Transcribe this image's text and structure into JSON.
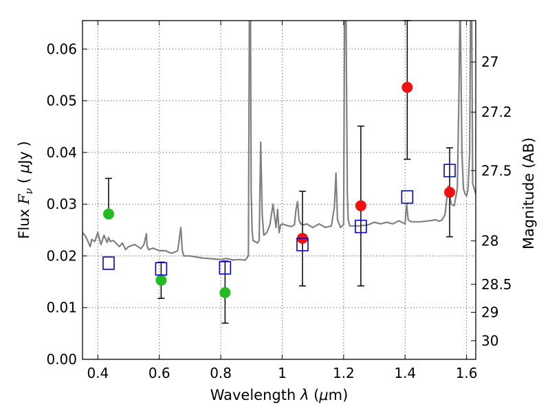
{
  "chart_data": {
    "type": "scatter",
    "title": "",
    "xlabel": {
      "prefix": "Wavelength  ",
      "lambda": "λ",
      "unit_open": " (",
      "mu": "μ",
      "unit_close": "m)"
    },
    "ylabel": {
      "prefix": "Flux  ",
      "F": "F",
      "nu": "ν",
      "unit_open": "  ( ",
      "mu": "μ",
      "unit_close": "Jy )"
    },
    "y2label": "Magnitude (AB)",
    "xlim": [
      0.35,
      1.63
    ],
    "ylim": [
      0.0,
      0.0655
    ],
    "x_ticks": [
      0.4,
      0.6,
      0.8,
      1.0,
      1.2,
      1.4,
      1.6
    ],
    "x_tick_labels": [
      "0.4",
      "0.6",
      "0.8",
      "1",
      "1.2",
      "1.4",
      "1.6"
    ],
    "y_ticks": [
      0.0,
      0.01,
      0.02,
      0.03,
      0.04,
      0.05,
      0.06
    ],
    "y_tick_labels": [
      "0.00",
      "0.01",
      "0.02",
      "0.03",
      "0.04",
      "0.05",
      "0.06"
    ],
    "y2_tick_labels": [
      "27",
      "27.2",
      "27.5",
      "28",
      "28.5",
      "29",
      "30"
    ],
    "y2_tick_flux": [
      0.0575,
      0.0478,
      0.0365,
      0.0229,
      0.0145,
      0.0091,
      0.0036
    ],
    "grid": true,
    "colors": {
      "model": "#808080",
      "green": "#22bb22",
      "red": "#ee1111",
      "blue": "#0000cc",
      "errorbar": "#000000"
    },
    "series": [
      {
        "marker": "filled-circle",
        "color": "#22bb22",
        "x": [
          0.435,
          0.606,
          0.814
        ],
        "y": [
          0.0281,
          0.0153,
          0.0129
        ],
        "yerr_low": [
          0.0281,
          0.0118,
          0.007
        ],
        "yerr_high": [
          0.035,
          0.0188,
          0.019
        ]
      },
      {
        "marker": "filled-circle",
        "color": "#ee1111",
        "x": [
          1.066,
          1.256,
          1.407,
          1.545
        ],
        "y": [
          0.0234,
          0.0297,
          0.0526,
          0.0323
        ],
        "yerr_low": [
          0.0142,
          0.0142,
          0.0387,
          0.0237
        ],
        "yerr_high": [
          0.0325,
          0.0451,
          0.0655,
          0.0409
        ]
      },
      {
        "marker": "open-square",
        "color": "#0000cc",
        "x": [
          0.435,
          0.606,
          0.814,
          1.066,
          1.256,
          1.407,
          1.545
        ],
        "y": [
          0.0186,
          0.0175,
          0.0177,
          0.0222,
          0.0257,
          0.0314,
          0.0365
        ]
      }
    ],
    "model_spectrum": {
      "x": [
        0.35,
        0.36,
        0.37,
        0.375,
        0.38,
        0.39,
        0.4,
        0.41,
        0.42,
        0.43,
        0.435,
        0.44,
        0.45,
        0.46,
        0.47,
        0.48,
        0.49,
        0.5,
        0.52,
        0.54,
        0.55,
        0.558,
        0.56,
        0.565,
        0.58,
        0.6,
        0.62,
        0.64,
        0.66,
        0.67,
        0.675,
        0.68,
        0.7,
        0.72,
        0.74,
        0.76,
        0.78,
        0.8,
        0.82,
        0.84,
        0.86,
        0.88,
        0.89,
        0.893,
        0.895,
        0.897,
        0.899,
        0.902,
        0.905,
        0.91,
        0.92,
        0.925,
        0.93,
        0.935,
        0.94,
        0.95,
        0.96,
        0.97,
        0.98,
        0.985,
        0.99,
        0.995,
        1.0,
        1.01,
        1.02,
        1.03,
        1.04,
        1.045,
        1.05,
        1.055,
        1.06,
        1.07,
        1.08,
        1.09,
        1.1,
        1.12,
        1.14,
        1.16,
        1.17,
        1.175,
        1.18,
        1.19,
        1.2,
        1.203,
        1.205,
        1.208,
        1.212,
        1.215,
        1.22,
        1.25,
        1.28,
        1.3,
        1.32,
        1.34,
        1.36,
        1.38,
        1.4,
        1.405,
        1.41,
        1.42,
        1.45,
        1.48,
        1.5,
        1.51,
        1.52,
        1.53,
        1.54,
        1.55,
        1.56,
        1.57,
        1.575,
        1.578,
        1.58,
        1.585,
        1.59,
        1.595,
        1.6,
        1.605,
        1.61,
        1.613,
        1.615,
        1.617,
        1.62,
        1.63
      ],
      "y": [
        0.0245,
        0.0238,
        0.0225,
        0.0218,
        0.0232,
        0.0228,
        0.0245,
        0.0222,
        0.024,
        0.0226,
        0.0236,
        0.0228,
        0.023,
        0.0224,
        0.0218,
        0.0225,
        0.0212,
        0.0218,
        0.0222,
        0.0214,
        0.0222,
        0.0243,
        0.022,
        0.0212,
        0.0215,
        0.021,
        0.021,
        0.0205,
        0.021,
        0.0255,
        0.021,
        0.02,
        0.02,
        0.0198,
        0.0196,
        0.0195,
        0.0194,
        0.0193,
        0.0195,
        0.0192,
        0.0193,
        0.0192,
        0.02,
        0.0655,
        0.0655,
        0.0655,
        0.033,
        0.025,
        0.023,
        0.0228,
        0.0225,
        0.023,
        0.042,
        0.028,
        0.024,
        0.0245,
        0.026,
        0.03,
        0.0255,
        0.029,
        0.0245,
        0.026,
        0.0262,
        0.026,
        0.0258,
        0.0257,
        0.026,
        0.029,
        0.0305,
        0.027,
        0.0262,
        0.026,
        0.0262,
        0.0258,
        0.0255,
        0.0262,
        0.0255,
        0.0258,
        0.0295,
        0.036,
        0.027,
        0.0255,
        0.026,
        0.0655,
        0.0655,
        0.0655,
        0.032,
        0.027,
        0.0258,
        0.0258,
        0.026,
        0.0265,
        0.0262,
        0.0265,
        0.0262,
        0.0268,
        0.0262,
        0.03,
        0.027,
        0.0266,
        0.0266,
        0.0268,
        0.027,
        0.0267,
        0.0269,
        0.028,
        0.0335,
        0.03,
        0.0297,
        0.033,
        0.05,
        0.0655,
        0.0655,
        0.04,
        0.033,
        0.032,
        0.0316,
        0.033,
        0.04,
        0.0655,
        0.0655,
        0.0655,
        0.034,
        0.032
      ]
    }
  }
}
